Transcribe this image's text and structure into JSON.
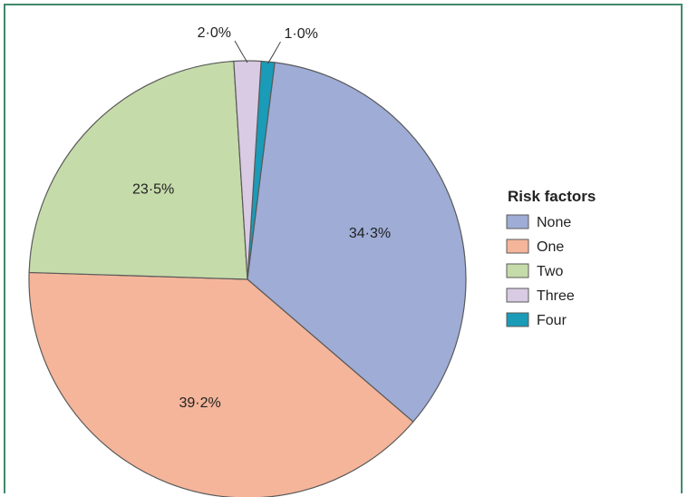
{
  "chart_data": {
    "type": "pie",
    "title": "",
    "legend": {
      "title": "Risk factors",
      "placement": "right"
    },
    "slices": [
      {
        "name": "None",
        "value": 34.3,
        "label": "34·3%",
        "color": "#9eacd6"
      },
      {
        "name": "One",
        "value": 39.2,
        "label": "39·2%",
        "color": "#f5b59a"
      },
      {
        "name": "Two",
        "value": 23.5,
        "label": "23·5%",
        "color": "#c6dbaa"
      },
      {
        "name": "Three",
        "value": 2.0,
        "label": "2·0%",
        "color": "#d8cbe3"
      },
      {
        "name": "Four",
        "value": 1.0,
        "label": "1·0%",
        "color": "#1a9bb8"
      }
    ]
  },
  "colors": {
    "frame": "#3f8a6a",
    "stroke": "#5a5a5a"
  }
}
